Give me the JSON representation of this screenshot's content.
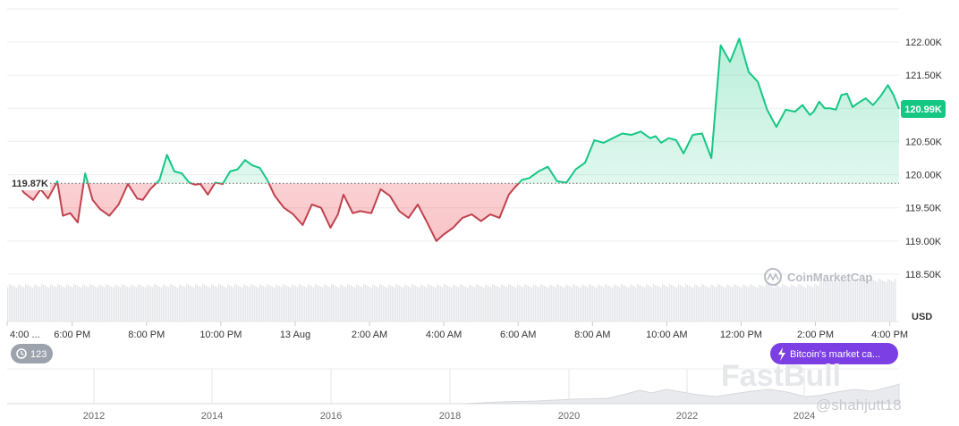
{
  "chart_data": {
    "type": "area",
    "currency": "USD",
    "base_value": 119.87,
    "base_label": "119.87K",
    "current_value": 120.99,
    "current_label": "120.99K",
    "y_axis": {
      "ticks": [
        118.5,
        119.0,
        119.5,
        120.0,
        120.5,
        121.0,
        121.5,
        122.0
      ],
      "tick_labels": [
        "118.50K",
        "119.00K",
        "119.50K",
        "120.00K",
        "120.50K",
        "",
        "121.50K",
        "122.00K"
      ],
      "unit_label": "USD",
      "range": [
        118.5,
        122.0
      ]
    },
    "x_axis": {
      "ticks": [
        0,
        1.75,
        3.75,
        5.75,
        7.75,
        9.75,
        11.75,
        13.75,
        15.75,
        17.75,
        19.75,
        21.75,
        23.75
      ],
      "tick_labels": [
        "4:00 ...",
        "6:00 PM",
        "8:00 PM",
        "10:00 PM",
        "13 Aug",
        "2:00 AM",
        "4:00 AM",
        "6:00 AM",
        "8:00 AM",
        "10:00 AM",
        "12:00 PM",
        "2:00 PM",
        "4:00 PM"
      ],
      "range": [
        0,
        24
      ]
    },
    "x": [
      0,
      0.16,
      0.45,
      0.7,
      0.9,
      1.1,
      1.35,
      1.5,
      1.7,
      1.9,
      2.1,
      2.3,
      2.5,
      2.75,
      3.0,
      3.25,
      3.5,
      3.65,
      3.85,
      4.1,
      4.3,
      4.5,
      4.7,
      4.9,
      5.05,
      5.2,
      5.4,
      5.6,
      5.8,
      6.0,
      6.2,
      6.4,
      6.6,
      6.8,
      7.0,
      7.2,
      7.45,
      7.7,
      7.95,
      8.2,
      8.45,
      8.7,
      8.9,
      9.05,
      9.3,
      9.5,
      9.8,
      10.05,
      10.3,
      10.55,
      10.8,
      11.05,
      11.3,
      11.55,
      11.75,
      12.0,
      12.25,
      12.5,
      12.75,
      13.0,
      13.25,
      13.5,
      13.65,
      13.85,
      14.05,
      14.3,
      14.55,
      14.8,
      15.05,
      15.3,
      15.55,
      15.8,
      16.05,
      16.3,
      16.55,
      16.8,
      17.05,
      17.3,
      17.45,
      17.6,
      17.8,
      18.0,
      18.2,
      18.45,
      18.7,
      18.95,
      19.2,
      19.45,
      19.7,
      19.95,
      20.2,
      20.45,
      20.7,
      20.95,
      21.2,
      21.4,
      21.6,
      21.7,
      21.85,
      22.0,
      22.15,
      22.3,
      22.45,
      22.6,
      22.75,
      22.9,
      23.1,
      23.3,
      23.5,
      23.7,
      23.85,
      24.0
    ],
    "values": [
      119.95,
      119.97,
      119.73,
      119.62,
      119.78,
      119.64,
      119.9,
      119.38,
      119.42,
      119.28,
      120.02,
      119.62,
      119.48,
      119.38,
      119.55,
      119.86,
      119.64,
      119.62,
      119.78,
      119.92,
      120.3,
      120.05,
      120.02,
      119.88,
      119.85,
      119.86,
      119.7,
      119.88,
      119.86,
      120.05,
      120.08,
      120.22,
      120.14,
      120.1,
      119.92,
      119.68,
      119.5,
      119.4,
      119.24,
      119.55,
      119.5,
      119.2,
      119.4,
      119.7,
      119.42,
      119.45,
      119.42,
      119.78,
      119.68,
      119.45,
      119.35,
      119.55,
      119.28,
      119.0,
      119.1,
      119.2,
      119.35,
      119.4,
      119.3,
      119.4,
      119.35,
      119.7,
      119.8,
      119.92,
      119.95,
      120.05,
      120.12,
      119.9,
      119.88,
      120.08,
      120.18,
      120.52,
      120.48,
      120.55,
      120.62,
      120.6,
      120.65,
      120.55,
      120.58,
      120.48,
      120.55,
      120.52,
      120.32,
      120.6,
      120.62,
      120.25,
      121.95,
      121.7,
      122.05,
      121.55,
      121.4,
      120.98,
      120.72,
      120.98,
      120.95,
      121.05,
      120.9,
      120.95,
      121.1,
      121.0,
      121.0,
      120.98,
      121.2,
      121.22,
      121.02,
      121.08,
      121.15,
      121.05,
      121.18,
      121.35,
      121.2,
      120.99
    ],
    "volume_note": "",
    "navigator": {
      "labels": [
        "2012",
        "2014",
        "2016",
        "2018",
        "2020",
        "2022",
        "2024"
      ]
    },
    "colors": {
      "up_line": "#16c784",
      "down_line": "#c0424e",
      "up_fill": "#16c784",
      "down_fill": "#ea3943",
      "current_badge": "#16c784",
      "chip": "#7b3fe4",
      "badge_gray": "#9ca3ad"
    }
  },
  "widgets": {
    "history_badge": "123",
    "event_chip": "Bitcoin's market ca...",
    "brand": "CoinMarketCap",
    "watermark": "FastBull",
    "handle": "@shahjutt18"
  },
  "icons": {
    "history": "history-clock-icon",
    "event": "lightning-icon",
    "brand": "coinmarketcap-logo-icon"
  }
}
